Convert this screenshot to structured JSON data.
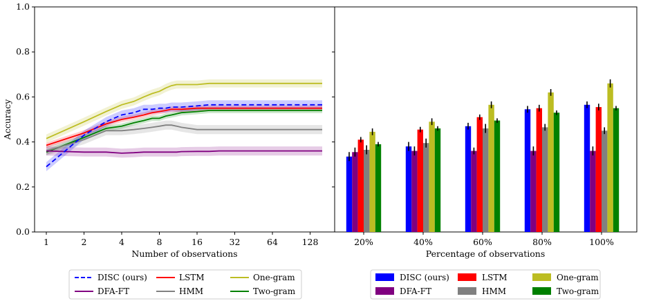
{
  "chart_data": [
    {
      "type": "line",
      "ylabel": "Accuracy",
      "xlabel": "Number of observations",
      "xscale": "log2",
      "x_ticks": [
        1,
        2,
        4,
        8,
        16,
        32,
        64,
        128
      ],
      "x_tick_labels": [
        "1",
        "2",
        "4",
        "8",
        "16",
        "32",
        "64",
        "128"
      ],
      "ylim": [
        0,
        1
      ],
      "y_ticks": [
        0,
        0.2,
        0.4,
        0.6,
        0.8,
        1.0
      ],
      "y_tick_labels": [
        "0.0",
        "0.2",
        "0.4",
        "0.6",
        "0.8",
        "1.0"
      ],
      "x": [
        1,
        2,
        3,
        4,
        5,
        6,
        7,
        8,
        9,
        10,
        11,
        12,
        16,
        20,
        24,
        32,
        48,
        64,
        96,
        128,
        160
      ],
      "series": [
        {
          "name": "DISC (ours)",
          "color": "#0000ff",
          "dash": true,
          "values": [
            0.29,
            0.43,
            0.49,
            0.52,
            0.53,
            0.545,
            0.545,
            0.55,
            0.55,
            0.555,
            0.555,
            0.555,
            0.56,
            0.565,
            0.565,
            0.565,
            0.565,
            0.565,
            0.565,
            0.565,
            0.565
          ],
          "band": 0.02
        },
        {
          "name": "LSTM",
          "color": "#ff0000",
          "values": [
            0.385,
            0.44,
            0.48,
            0.5,
            0.51,
            0.52,
            0.53,
            0.535,
            0.54,
            0.545,
            0.545,
            0.545,
            0.55,
            0.55,
            0.55,
            0.55,
            0.55,
            0.55,
            0.55,
            0.55,
            0.55
          ],
          "band": 0.012
        },
        {
          "name": "One-gram",
          "color": "#bcbd22",
          "values": [
            0.415,
            0.49,
            0.535,
            0.565,
            0.58,
            0.6,
            0.615,
            0.625,
            0.64,
            0.65,
            0.655,
            0.655,
            0.655,
            0.66,
            0.66,
            0.66,
            0.66,
            0.66,
            0.66,
            0.66,
            0.66
          ],
          "band": 0.018
        },
        {
          "name": "DFA-FT",
          "color": "#800080",
          "values": [
            0.36,
            0.355,
            0.355,
            0.35,
            0.352,
            0.355,
            0.355,
            0.355,
            0.355,
            0.355,
            0.355,
            0.357,
            0.358,
            0.358,
            0.36,
            0.36,
            0.36,
            0.36,
            0.36,
            0.36,
            0.36
          ],
          "band": 0.02
        },
        {
          "name": "HMM",
          "color": "#808080",
          "values": [
            0.36,
            0.41,
            0.45,
            0.45,
            0.455,
            0.46,
            0.465,
            0.47,
            0.475,
            0.475,
            0.47,
            0.465,
            0.455,
            0.455,
            0.455,
            0.455,
            0.455,
            0.455,
            0.455,
            0.455,
            0.455
          ],
          "band": 0.02
        },
        {
          "name": "Two-gram",
          "color": "#008000",
          "values": [
            0.355,
            0.42,
            0.46,
            0.47,
            0.485,
            0.495,
            0.505,
            0.505,
            0.515,
            0.52,
            0.525,
            0.53,
            0.535,
            0.54,
            0.54,
            0.54,
            0.54,
            0.54,
            0.54,
            0.54,
            0.54
          ],
          "band": 0.012
        }
      ]
    },
    {
      "type": "bar",
      "xlabel": "Percentage of observations",
      "ylim": [
        0,
        1
      ],
      "categories": [
        "20%",
        "40%",
        "60%",
        "80%",
        "100%"
      ],
      "series": [
        {
          "name": "DISC (ours)",
          "color": "#0000ff",
          "values": [
            0.335,
            0.38,
            0.47,
            0.545,
            0.565
          ],
          "errors": [
            0.02,
            0.02,
            0.015,
            0.015,
            0.015
          ]
        },
        {
          "name": "DFA-FT",
          "color": "#800080",
          "values": [
            0.355,
            0.36,
            0.36,
            0.36,
            0.36
          ],
          "errors": [
            0.02,
            0.02,
            0.015,
            0.02,
            0.02
          ]
        },
        {
          "name": "LSTM",
          "color": "#ff0000",
          "values": [
            0.41,
            0.455,
            0.51,
            0.55,
            0.555
          ],
          "errors": [
            0.012,
            0.012,
            0.012,
            0.015,
            0.015
          ]
        },
        {
          "name": "HMM",
          "color": "#808080",
          "values": [
            0.365,
            0.395,
            0.46,
            0.465,
            0.45
          ],
          "errors": [
            0.02,
            0.02,
            0.02,
            0.015,
            0.015
          ]
        },
        {
          "name": "One-gram",
          "color": "#bcbd22",
          "values": [
            0.445,
            0.49,
            0.565,
            0.62,
            0.66
          ],
          "errors": [
            0.015,
            0.015,
            0.015,
            0.015,
            0.018
          ]
        },
        {
          "name": "Two-gram",
          "color": "#008000",
          "values": [
            0.39,
            0.46,
            0.495,
            0.53,
            0.55
          ],
          "errors": [
            0.01,
            0.01,
            0.01,
            0.01,
            0.01
          ]
        }
      ]
    }
  ],
  "legends": [
    {
      "entries": [
        {
          "label": "DISC (ours)",
          "color": "#0000ff",
          "style": "dashed"
        },
        {
          "label": "LSTM",
          "color": "#ff0000",
          "style": "line"
        },
        {
          "label": "One-gram",
          "color": "#bcbd22",
          "style": "line"
        },
        {
          "label": "DFA-FT",
          "color": "#800080",
          "style": "line"
        },
        {
          "label": "HMM",
          "color": "#808080",
          "style": "line"
        },
        {
          "label": "Two-gram",
          "color": "#008000",
          "style": "line"
        }
      ]
    },
    {
      "entries": [
        {
          "label": "DISC (ours)",
          "color": "#0000ff",
          "style": "patch"
        },
        {
          "label": "LSTM",
          "color": "#ff0000",
          "style": "patch"
        },
        {
          "label": "One-gram",
          "color": "#bcbd22",
          "style": "patch"
        },
        {
          "label": "DFA-FT",
          "color": "#800080",
          "style": "patch"
        },
        {
          "label": "HMM",
          "color": "#808080",
          "style": "patch"
        },
        {
          "label": "Two-gram",
          "color": "#008000",
          "style": "patch"
        }
      ]
    }
  ]
}
